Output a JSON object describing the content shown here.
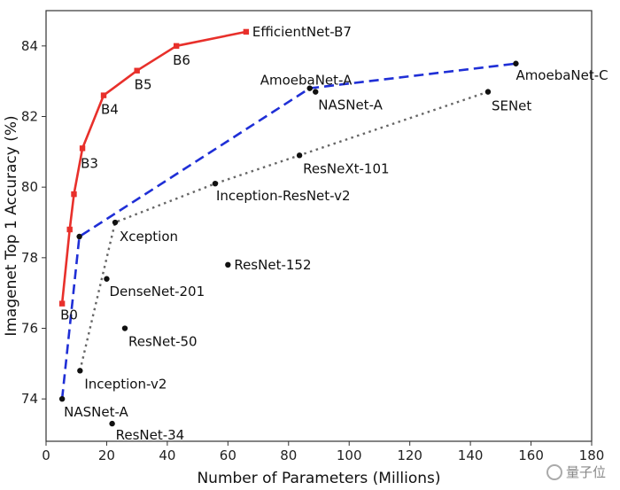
{
  "chart_data": {
    "type": "scatter",
    "title": "",
    "xlabel": "Number of Parameters (Millions)",
    "ylabel": "Imagenet Top 1 Accuracy (%)",
    "xlim": [
      0,
      180
    ],
    "ylim": [
      72.8,
      85.0
    ],
    "xticks": [
      0,
      20,
      40,
      60,
      80,
      100,
      120,
      140,
      160,
      180
    ],
    "yticks": [
      74,
      76,
      78,
      80,
      82,
      84
    ],
    "grid": false,
    "legend": "none",
    "series": [
      {
        "style": "solid",
        "color": "#e8302b",
        "marker": "square",
        "points": [
          {
            "label": "B0",
            "x": 5.3,
            "y": 76.7
          },
          {
            "label": "",
            "x": 7.8,
            "y": 78.8
          },
          {
            "label": "",
            "x": 9.2,
            "y": 79.8
          },
          {
            "label": "B3",
            "x": 12,
            "y": 81.1
          },
          {
            "label": "B4",
            "x": 19,
            "y": 82.6
          },
          {
            "label": "B5",
            "x": 30,
            "y": 83.3
          },
          {
            "label": "B6",
            "x": 43,
            "y": 84.0
          },
          {
            "label": "EfficientNet-B7",
            "x": 66,
            "y": 84.4
          }
        ]
      },
      {
        "style": "dashed",
        "color": "#1f2fd6",
        "marker": "circle",
        "points": [
          {
            "label": "NASNet-A",
            "x": 5.3,
            "y": 74.0
          },
          {
            "label": "",
            "x": 11.0,
            "y": 78.6
          },
          {
            "label": "AmoebaNet-A",
            "x": 87,
            "y": 82.8
          },
          {
            "label": "AmoebaNet-C",
            "x": 155,
            "y": 83.5
          }
        ]
      },
      {
        "style": "dotted",
        "color": "#666666",
        "marker": "circle",
        "points": [
          {
            "label": "Inception-v2",
            "x": 11.2,
            "y": 74.8
          },
          {
            "label": "Xception",
            "x": 22.8,
            "y": 79.0
          },
          {
            "label": "Inception-ResNet-v2",
            "x": 55.8,
            "y": 80.1
          },
          {
            "label": "ResNeXt-101",
            "x": 83.6,
            "y": 80.9
          },
          {
            "label": "SENet",
            "x": 145.8,
            "y": 82.7
          }
        ]
      }
    ],
    "others": [
      {
        "label": "NASNet-A",
        "x": 88.9,
        "y": 82.7
      },
      {
        "label": "DenseNet-201",
        "x": 20,
        "y": 77.4
      },
      {
        "label": "ResNet-152",
        "x": 60,
        "y": 77.8
      },
      {
        "label": "ResNet-50",
        "x": 26,
        "y": 76.0
      },
      {
        "label": "ResNet-34",
        "x": 21.8,
        "y": 73.3
      }
    ]
  },
  "watermark": "量子位"
}
